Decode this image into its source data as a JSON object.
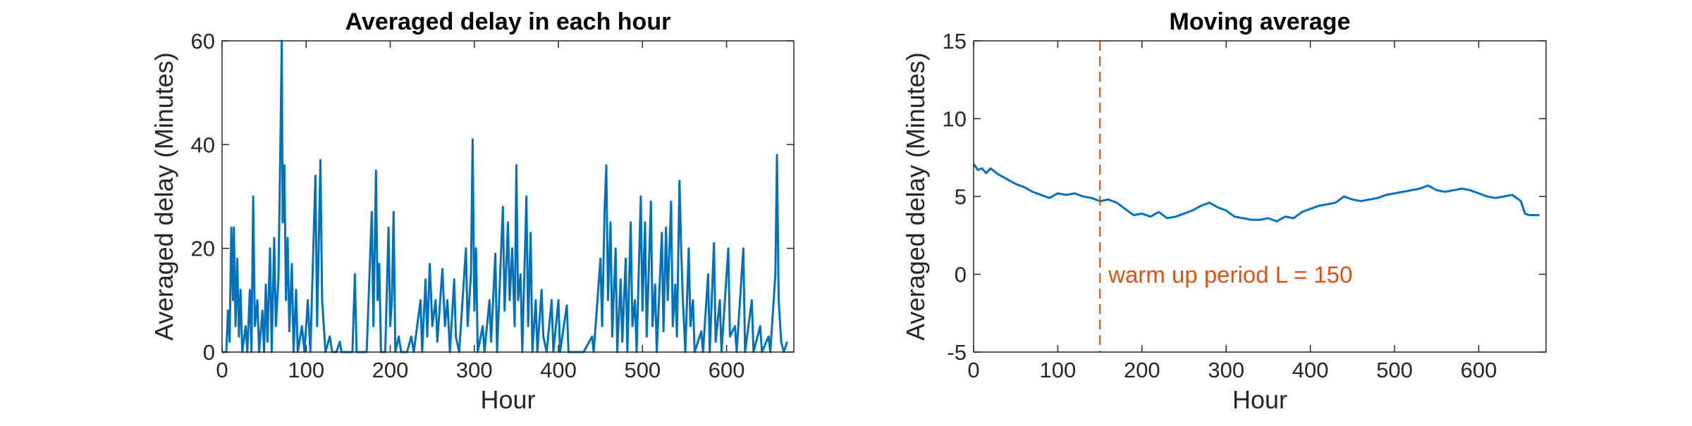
{
  "chart_data": [
    {
      "type": "line",
      "title": "Averaged delay in each hour",
      "xlabel": "Hour",
      "ylabel": "Averaged delay (Minutes)",
      "color": "#0072bd",
      "xlim": [
        0,
        680
      ],
      "xticks": [
        0,
        100,
        200,
        300,
        400,
        500,
        600
      ],
      "ylim": [
        0,
        60
      ],
      "yticks": [
        0,
        20,
        40,
        60
      ],
      "x": [
        0,
        5,
        7,
        9,
        11,
        13,
        14,
        16,
        18,
        20,
        22,
        24,
        28,
        30,
        33,
        35,
        37,
        39,
        42,
        44,
        48,
        50,
        52,
        54,
        57,
        59,
        62,
        64,
        67,
        69,
        71,
        72,
        74,
        76,
        78,
        80,
        83,
        85,
        88,
        90,
        95,
        98,
        102,
        105,
        111,
        113,
        117,
        119,
        121,
        123,
        128,
        131,
        136,
        140,
        142,
        150,
        155,
        158,
        160,
        168,
        172,
        178,
        180,
        183,
        185,
        187,
        189,
        194,
        198,
        200,
        202,
        204,
        206,
        210,
        213,
        220,
        225,
        228,
        236,
        238,
        242,
        244,
        247,
        250,
        254,
        256,
        262,
        265,
        268,
        271,
        276,
        278,
        282,
        290,
        292,
        296,
        298,
        300,
        302,
        304,
        310,
        312,
        318,
        320,
        325,
        327,
        334,
        336,
        340,
        342,
        345,
        348,
        350,
        352,
        355,
        357,
        362,
        364,
        367,
        369,
        373,
        375,
        380,
        382,
        386,
        392,
        394,
        400,
        402,
        410,
        412,
        420,
        430,
        440,
        442,
        450,
        452,
        455,
        457,
        459,
        462,
        464,
        468,
        470,
        474,
        476,
        480,
        482,
        486,
        488,
        491,
        493,
        498,
        500,
        503,
        505,
        510,
        512,
        515,
        517,
        523,
        525,
        528,
        530,
        534,
        536,
        539,
        541,
        544,
        546,
        548,
        551,
        555,
        557,
        560,
        562,
        570,
        572,
        578,
        580,
        585,
        587,
        592,
        594,
        602,
        604,
        610,
        612,
        620,
        622,
        630,
        632,
        640,
        642,
        650,
        652,
        658,
        660,
        662,
        665,
        668,
        672
      ],
      "values": [
        0,
        0,
        8,
        2,
        24,
        10,
        24,
        5,
        18,
        3,
        12,
        0,
        5,
        0,
        12,
        0,
        30,
        5,
        10,
        0,
        8,
        0,
        13,
        2,
        20,
        0,
        22,
        5,
        14,
        36,
        60,
        25,
        36,
        10,
        22,
        4,
        17,
        0,
        12,
        0,
        5,
        0,
        10,
        0,
        34,
        5,
        37,
        10,
        5,
        0,
        3,
        0,
        0,
        2,
        0,
        0,
        0,
        15,
        0,
        0,
        0,
        27,
        5,
        35,
        10,
        17,
        0,
        0,
        24,
        5,
        10,
        27,
        0,
        3,
        0,
        0,
        3,
        0,
        10,
        0,
        14,
        3,
        17,
        5,
        10,
        2,
        16,
        5,
        10,
        0,
        14,
        3,
        0,
        20,
        5,
        15,
        41,
        8,
        20,
        0,
        5,
        0,
        10,
        2,
        19,
        0,
        28,
        8,
        25,
        10,
        20,
        5,
        36,
        10,
        15,
        0,
        30,
        5,
        23,
        0,
        10,
        0,
        12,
        3,
        0,
        10,
        0,
        10,
        0,
        9,
        0,
        0,
        0,
        3,
        0,
        18,
        5,
        28,
        36,
        10,
        25,
        3,
        20,
        0,
        14,
        2,
        18,
        0,
        25,
        5,
        10,
        0,
        30,
        8,
        25,
        3,
        29,
        5,
        13,
        0,
        23,
        4,
        24,
        10,
        29,
        5,
        13,
        3,
        33,
        20,
        10,
        0,
        20,
        5,
        10,
        0,
        4,
        0,
        15,
        0,
        21,
        2,
        10,
        0,
        20,
        3,
        5,
        0,
        20,
        0,
        10,
        0,
        5,
        0,
        3,
        0,
        15,
        38,
        10,
        2,
        0,
        2
      ]
    },
    {
      "type": "line",
      "title": "Moving average",
      "xlabel": "Hour",
      "ylabel": "Averaged delay (Minutes)",
      "color": "#0072bd",
      "xlim": [
        0,
        680
      ],
      "xticks": [
        0,
        100,
        200,
        300,
        400,
        500,
        600
      ],
      "ylim": [
        -5,
        15
      ],
      "yticks": [
        -5,
        0,
        5,
        10,
        15
      ],
      "x": [
        0,
        5,
        10,
        15,
        20,
        30,
        40,
        50,
        60,
        70,
        80,
        90,
        100,
        110,
        120,
        130,
        140,
        150,
        160,
        170,
        180,
        190,
        200,
        210,
        220,
        230,
        240,
        250,
        260,
        270,
        280,
        290,
        300,
        310,
        320,
        330,
        340,
        350,
        360,
        370,
        380,
        390,
        400,
        410,
        420,
        430,
        440,
        450,
        460,
        470,
        480,
        490,
        500,
        510,
        520,
        530,
        540,
        550,
        560,
        570,
        580,
        590,
        600,
        610,
        620,
        630,
        640,
        650,
        655,
        660,
        672
      ],
      "values": [
        7.1,
        6.7,
        6.8,
        6.5,
        6.8,
        6.4,
        6.1,
        5.8,
        5.6,
        5.3,
        5.1,
        4.9,
        5.2,
        5.1,
        5.2,
        5.0,
        4.9,
        4.7,
        4.8,
        4.6,
        4.2,
        3.8,
        3.9,
        3.7,
        4.0,
        3.6,
        3.7,
        3.9,
        4.1,
        4.4,
        4.6,
        4.3,
        4.1,
        3.7,
        3.6,
        3.5,
        3.5,
        3.6,
        3.4,
        3.7,
        3.6,
        4.0,
        4.2,
        4.4,
        4.5,
        4.6,
        5.0,
        4.8,
        4.7,
        4.8,
        4.9,
        5.1,
        5.2,
        5.3,
        5.4,
        5.5,
        5.7,
        5.4,
        5.3,
        5.4,
        5.5,
        5.4,
        5.2,
        5.0,
        4.9,
        5.0,
        5.1,
        4.7,
        3.9,
        3.8,
        3.8
      ],
      "vline": 150,
      "vline_color": "#d95319",
      "annotation": "warm up period L = 150"
    }
  ]
}
